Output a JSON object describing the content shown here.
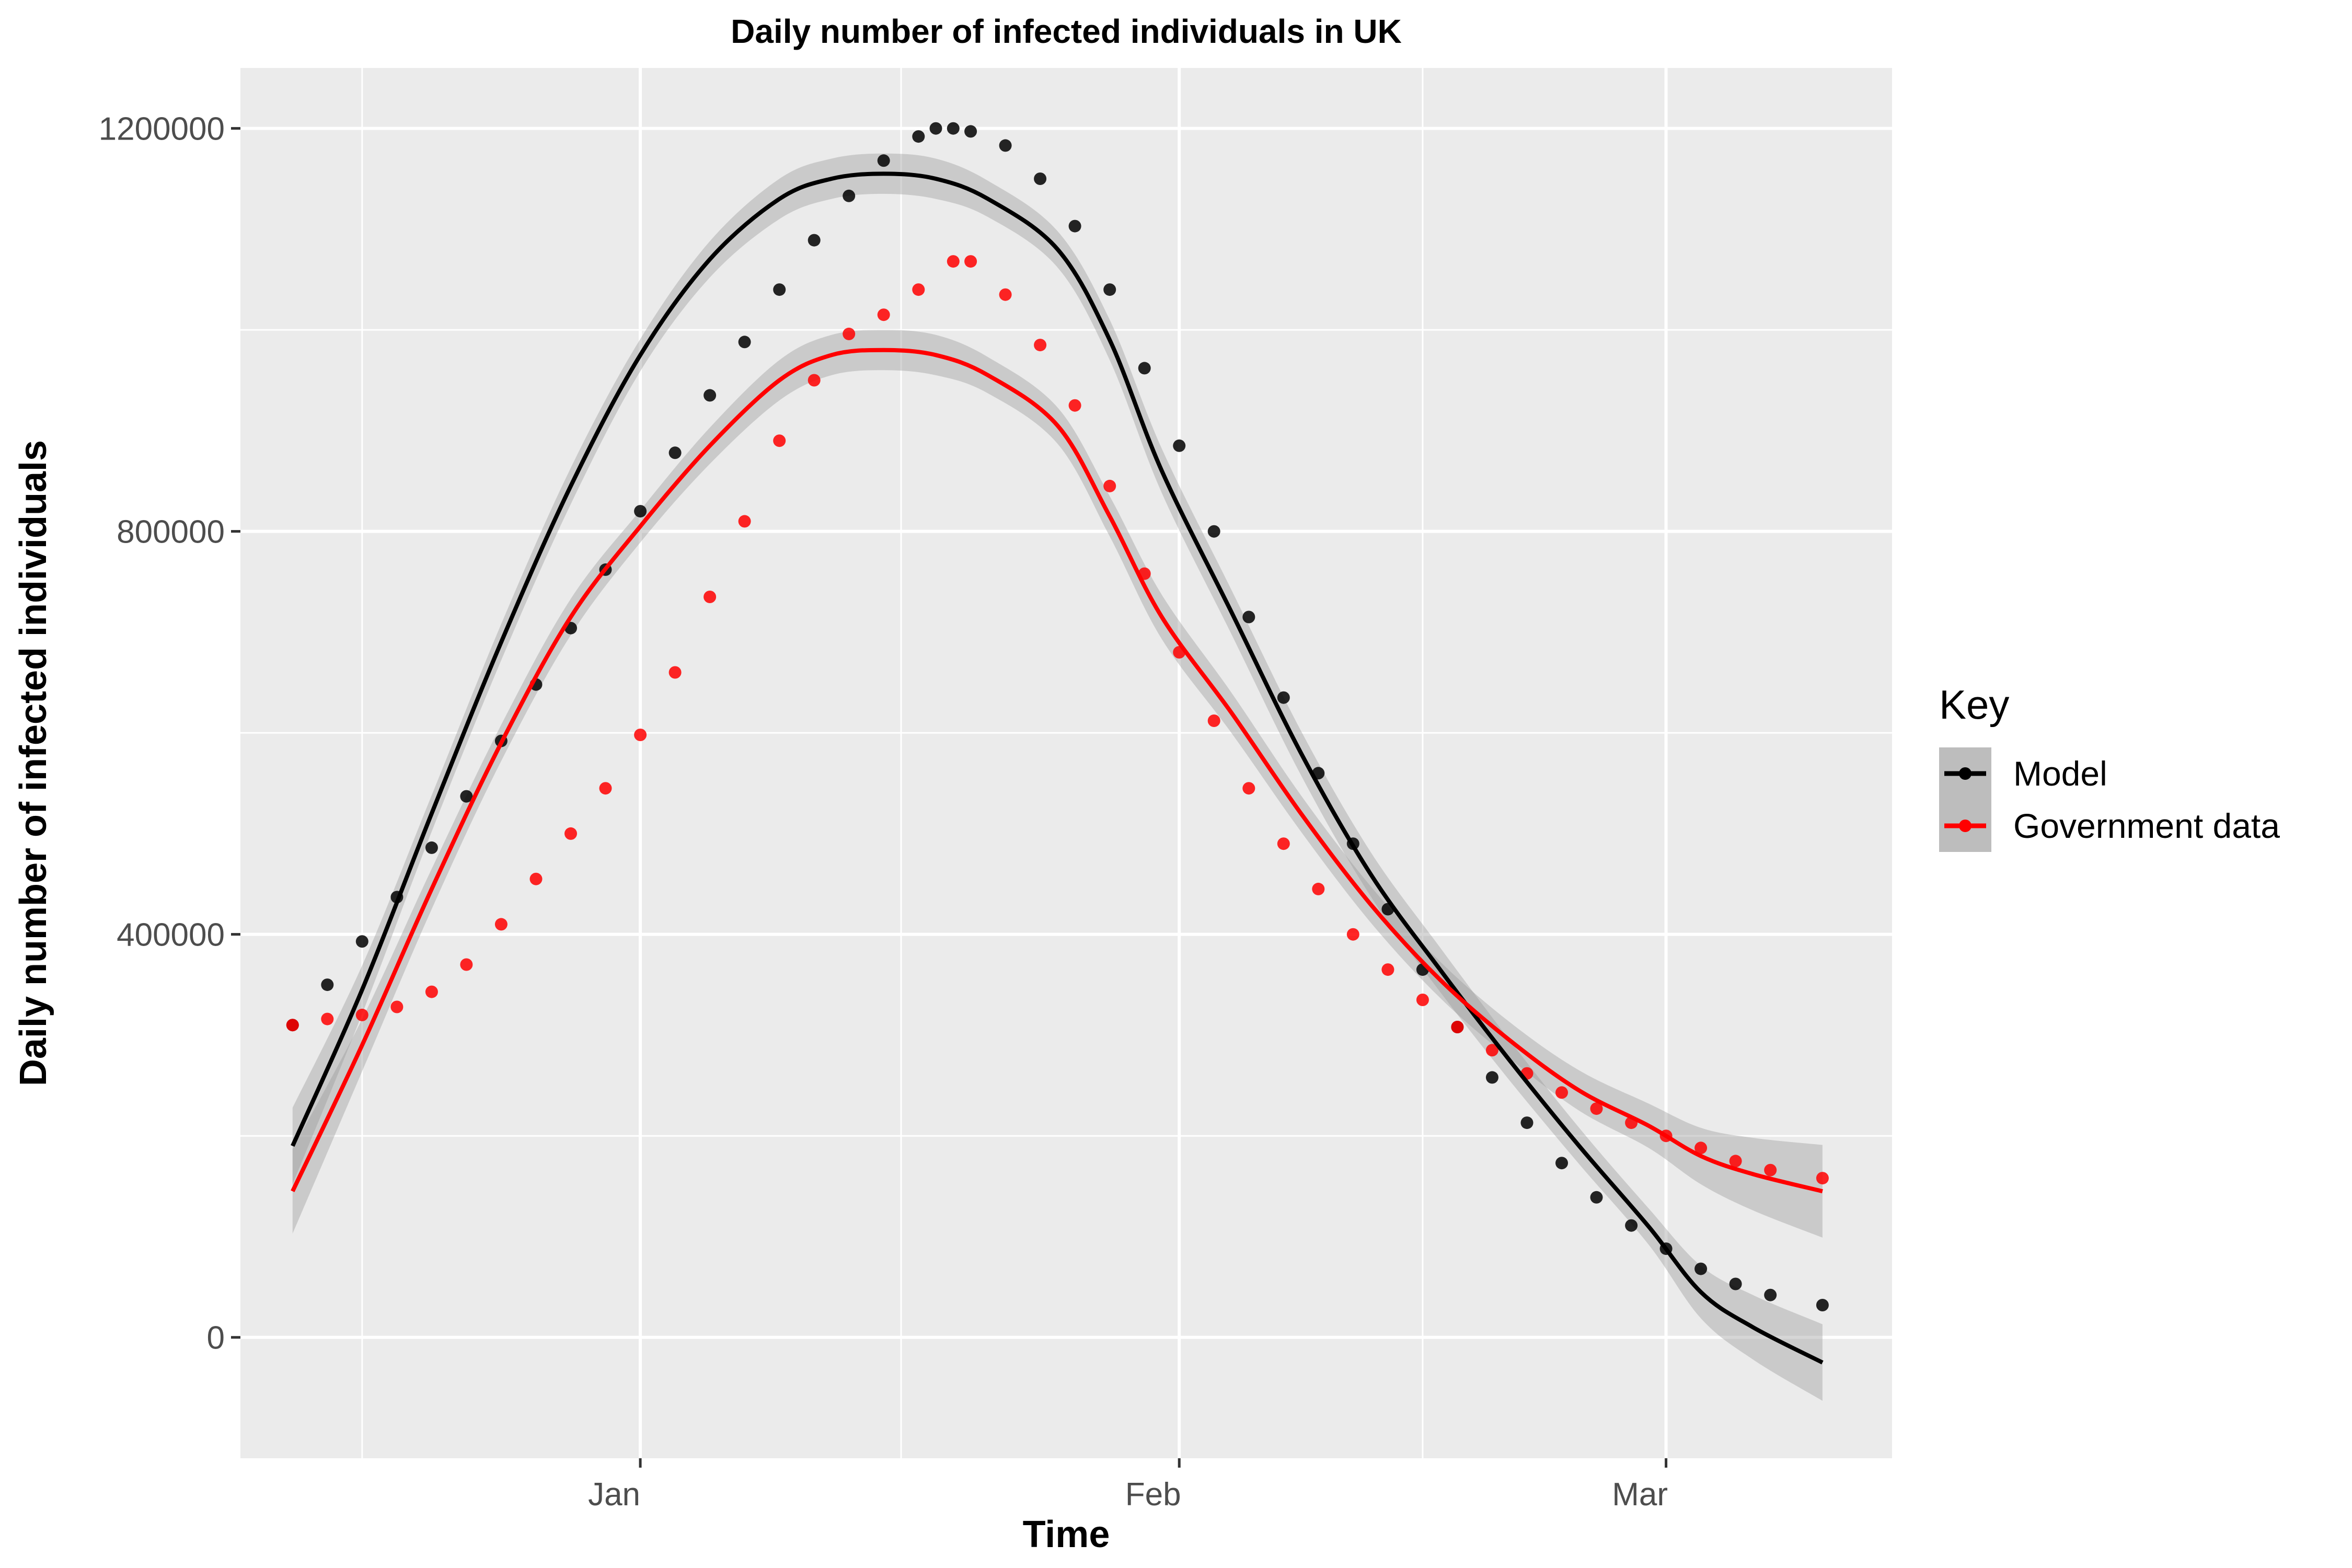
{
  "chart_data": {
    "type": "line",
    "title": "Daily number of infected individuals in UK",
    "xlabel": "Time",
    "ylabel": "Daily number of infected individuals",
    "x_axis": {
      "type": "date",
      "start": "2020-12-12",
      "end": "2021-03-10",
      "range": [
        "2020-12-09",
        "2021-03-14"
      ],
      "ticks": [
        {
          "date": "2021-01-01",
          "label": "Jan"
        },
        {
          "date": "2021-02-01",
          "label": "Feb"
        },
        {
          "date": "2021-03-01",
          "label": "Mar"
        }
      ],
      "minor_grid": [
        "2020-12-16",
        "2021-01-16",
        "2021-02-15"
      ]
    },
    "y_axis": {
      "ylim": [
        -120000,
        1260000
      ],
      "ticks": [
        0,
        400000,
        800000,
        1200000
      ],
      "tick_labels": [
        "0",
        "400000",
        "800000",
        "1200000"
      ],
      "minor_grid": [
        200000,
        600000,
        1000000
      ]
    },
    "grid": true,
    "legend": {
      "title": "Key",
      "placement": "right"
    },
    "series": [
      {
        "name": "Model",
        "color": "#000000",
        "points": [
          [
            "2020-12-12",
            310000
          ],
          [
            "2020-12-14",
            350000
          ],
          [
            "2020-12-16",
            393000
          ],
          [
            "2020-12-18",
            437000
          ],
          [
            "2020-12-20",
            486000
          ],
          [
            "2020-12-22",
            537000
          ],
          [
            "2020-12-24",
            592000
          ],
          [
            "2020-12-26",
            648000
          ],
          [
            "2020-12-28",
            704000
          ],
          [
            "2020-12-30",
            762000
          ],
          [
            "2021-01-01",
            820000
          ],
          [
            "2021-01-03",
            878000
          ],
          [
            "2021-01-05",
            935000
          ],
          [
            "2021-01-07",
            988000
          ],
          [
            "2021-01-09",
            1040000
          ],
          [
            "2021-01-11",
            1089000
          ],
          [
            "2021-01-13",
            1133000
          ],
          [
            "2021-01-15",
            1168000
          ],
          [
            "2021-01-17",
            1192000
          ],
          [
            "2021-01-18",
            1200000
          ],
          [
            "2021-01-19",
            1200000
          ],
          [
            "2021-01-20",
            1197000
          ],
          [
            "2021-01-22",
            1183000
          ],
          [
            "2021-01-24",
            1150000
          ],
          [
            "2021-01-26",
            1103000
          ],
          [
            "2021-01-28",
            1040000
          ],
          [
            "2021-01-30",
            962000
          ],
          [
            "2021-02-01",
            885000
          ],
          [
            "2021-02-03",
            800000
          ],
          [
            "2021-02-05",
            715000
          ],
          [
            "2021-02-07",
            635000
          ],
          [
            "2021-02-09",
            560000
          ],
          [
            "2021-02-11",
            490000
          ],
          [
            "2021-02-13",
            425000
          ],
          [
            "2021-02-15",
            365000
          ],
          [
            "2021-02-17",
            308000
          ],
          [
            "2021-02-19",
            258000
          ],
          [
            "2021-02-21",
            213000
          ],
          [
            "2021-02-23",
            173000
          ],
          [
            "2021-02-25",
            139000
          ],
          [
            "2021-02-27",
            111000
          ],
          [
            "2021-03-01",
            88000
          ],
          [
            "2021-03-03",
            68000
          ],
          [
            "2021-03-05",
            53000
          ],
          [
            "2021-03-07",
            42000
          ],
          [
            "2021-03-10",
            32000
          ]
        ],
        "smooth": {
          "points": [
            [
              "2020-12-12",
              190000
            ],
            [
              "2020-12-16",
              345000
            ],
            [
              "2020-12-20",
              520000
            ],
            [
              "2020-12-24",
              690000
            ],
            [
              "2020-12-28",
              845000
            ],
            [
              "2021-01-01",
              975000
            ],
            [
              "2021-01-05",
              1070000
            ],
            [
              "2021-01-09",
              1130000
            ],
            [
              "2021-01-12",
              1150000
            ],
            [
              "2021-01-15",
              1155000
            ],
            [
              "2021-01-18",
              1150000
            ],
            [
              "2021-01-21",
              1130000
            ],
            [
              "2021-01-25",
              1080000
            ],
            [
              "2021-01-28",
              990000
            ],
            [
              "2021-01-31",
              860000
            ],
            [
              "2021-02-04",
              720000
            ],
            [
              "2021-02-08",
              580000
            ],
            [
              "2021-02-12",
              460000
            ],
            [
              "2021-02-16",
              365000
            ],
            [
              "2021-02-20",
              275000
            ],
            [
              "2021-02-24",
              190000
            ],
            [
              "2021-02-28",
              110000
            ],
            [
              "2021-03-03",
              45000
            ],
            [
              "2021-03-06",
              10000
            ],
            [
              "2021-03-10",
              -25000
            ]
          ],
          "ci_halfwidth": [
            38000,
            24000,
            18000,
            18000,
            18000,
            16000,
            18000,
            20000,
            20000,
            20000,
            20000,
            18000,
            18000,
            20000,
            22000,
            22000,
            22000,
            22000,
            22000,
            20000,
            18000,
            18000,
            26000,
            32000,
            38000
          ]
        }
      },
      {
        "name": "Government data",
        "color": "#ff0000",
        "points": [
          [
            "2020-12-12",
            310000
          ],
          [
            "2020-12-14",
            316000
          ],
          [
            "2020-12-16",
            320000
          ],
          [
            "2020-12-18",
            328000
          ],
          [
            "2020-12-20",
            343000
          ],
          [
            "2020-12-22",
            370000
          ],
          [
            "2020-12-24",
            410000
          ],
          [
            "2020-12-26",
            455000
          ],
          [
            "2020-12-28",
            500000
          ],
          [
            "2020-12-30",
            545000
          ],
          [
            "2021-01-01",
            598000
          ],
          [
            "2021-01-03",
            660000
          ],
          [
            "2021-01-05",
            735000
          ],
          [
            "2021-01-07",
            810000
          ],
          [
            "2021-01-09",
            890000
          ],
          [
            "2021-01-11",
            950000
          ],
          [
            "2021-01-13",
            996000
          ],
          [
            "2021-01-15",
            1015000
          ],
          [
            "2021-01-17",
            1040000
          ],
          [
            "2021-01-19",
            1068000
          ],
          [
            "2021-01-20",
            1068000
          ],
          [
            "2021-01-22",
            1035000
          ],
          [
            "2021-01-24",
            985000
          ],
          [
            "2021-01-26",
            925000
          ],
          [
            "2021-01-28",
            845000
          ],
          [
            "2021-01-30",
            758000
          ],
          [
            "2021-02-01",
            680000
          ],
          [
            "2021-02-03",
            612000
          ],
          [
            "2021-02-05",
            545000
          ],
          [
            "2021-02-07",
            490000
          ],
          [
            "2021-02-09",
            445000
          ],
          [
            "2021-02-11",
            400000
          ],
          [
            "2021-02-13",
            365000
          ],
          [
            "2021-02-15",
            335000
          ],
          [
            "2021-02-17",
            308000
          ],
          [
            "2021-02-19",
            285000
          ],
          [
            "2021-02-21",
            262000
          ],
          [
            "2021-02-23",
            243000
          ],
          [
            "2021-02-25",
            227000
          ],
          [
            "2021-02-27",
            213000
          ],
          [
            "2021-03-01",
            200000
          ],
          [
            "2021-03-03",
            188000
          ],
          [
            "2021-03-05",
            175000
          ],
          [
            "2021-03-07",
            166000
          ],
          [
            "2021-03-10",
            158000
          ]
        ],
        "smooth": {
          "points": [
            [
              "2020-12-12",
              145000
            ],
            [
              "2020-12-16",
              290000
            ],
            [
              "2020-12-20",
              445000
            ],
            [
              "2020-12-24",
              590000
            ],
            [
              "2020-12-28",
              715000
            ],
            [
              "2021-01-01",
              805000
            ],
            [
              "2021-01-05",
              885000
            ],
            [
              "2021-01-09",
              950000
            ],
            [
              "2021-01-12",
              975000
            ],
            [
              "2021-01-15",
              980000
            ],
            [
              "2021-01-18",
              975000
            ],
            [
              "2021-01-21",
              955000
            ],
            [
              "2021-01-25",
              905000
            ],
            [
              "2021-01-28",
              815000
            ],
            [
              "2021-01-31",
              715000
            ],
            [
              "2021-02-04",
              620000
            ],
            [
              "2021-02-08",
              520000
            ],
            [
              "2021-02-12",
              430000
            ],
            [
              "2021-02-16",
              355000
            ],
            [
              "2021-02-20",
              295000
            ],
            [
              "2021-02-24",
              245000
            ],
            [
              "2021-02-28",
              210000
            ],
            [
              "2021-03-03",
              180000
            ],
            [
              "2021-03-06",
              162000
            ],
            [
              "2021-03-10",
              145000
            ]
          ],
          "ci_halfwidth": [
            42000,
            26000,
            20000,
            18000,
            18000,
            16000,
            18000,
            20000,
            20000,
            20000,
            20000,
            18000,
            18000,
            20000,
            22000,
            20000,
            18000,
            18000,
            18000,
            18000,
            20000,
            22000,
            28000,
            36000,
            46000
          ]
        }
      }
    ]
  }
}
